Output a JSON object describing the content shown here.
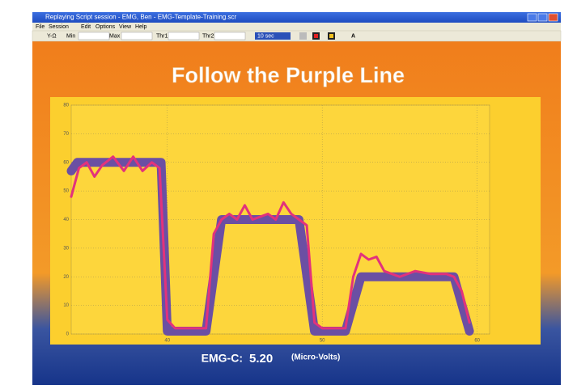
{
  "window": {
    "title": "Replaying Script session - EMG, Ben - EMG-Template-Training.scr"
  },
  "menu": [
    "File",
    "Session",
    "Edit",
    "Options",
    "View",
    "Help"
  ],
  "toolbar": {
    "labels": [
      "Y-Ω",
      "Min",
      "Max",
      "Thr1",
      "Thr2"
    ],
    "timebase": "10 sec",
    "button": "A"
  },
  "readout": {
    "label": "EMG-C:",
    "value": "5.20",
    "unit": "(Micro-Volts)"
  },
  "chart_data": {
    "type": "line",
    "title": "Follow the Purple Line",
    "xlim": [
      33.8,
      60.8
    ],
    "xticks": [
      40,
      50,
      60
    ],
    "ylim": [
      0,
      80
    ],
    "yticks": [
      0,
      10,
      20,
      30,
      40,
      50,
      60,
      70,
      80
    ],
    "grid": true,
    "series": [
      {
        "color": "#6b4fa3",
        "x": [
          33.8,
          34.2,
          39.6,
          40,
          42.5,
          43.5,
          48.5,
          49.5,
          51.5,
          52.5,
          58.5,
          59.5
        ],
        "values": [
          57,
          60,
          60,
          1,
          1,
          40,
          40,
          1,
          1,
          20,
          20,
          1
        ]
      },
      {
        "color": "#e2327c",
        "x": [
          33.8,
          34.3,
          34.8,
          35.3,
          35.8,
          36.5,
          37.2,
          37.8,
          38.4,
          39,
          39.5,
          40,
          40.5,
          42.5,
          43,
          43.5,
          44,
          44.5,
          45,
          45.5,
          46.5,
          47,
          47.5,
          48,
          48.5,
          49,
          49.5,
          50,
          51.5,
          52,
          52.5,
          53,
          53.5,
          54,
          55,
          56,
          57,
          58,
          58.5,
          59,
          59.5
        ],
        "values": [
          48,
          58,
          60,
          55,
          59,
          62,
          57,
          62,
          57,
          60,
          58,
          5,
          2,
          2,
          35,
          40,
          42,
          40,
          45,
          40,
          42,
          40,
          46,
          42,
          40,
          38,
          4,
          2,
          2,
          20,
          28,
          26,
          27,
          22,
          20,
          22,
          21,
          21,
          20,
          15,
          4
        ]
      }
    ]
  }
}
